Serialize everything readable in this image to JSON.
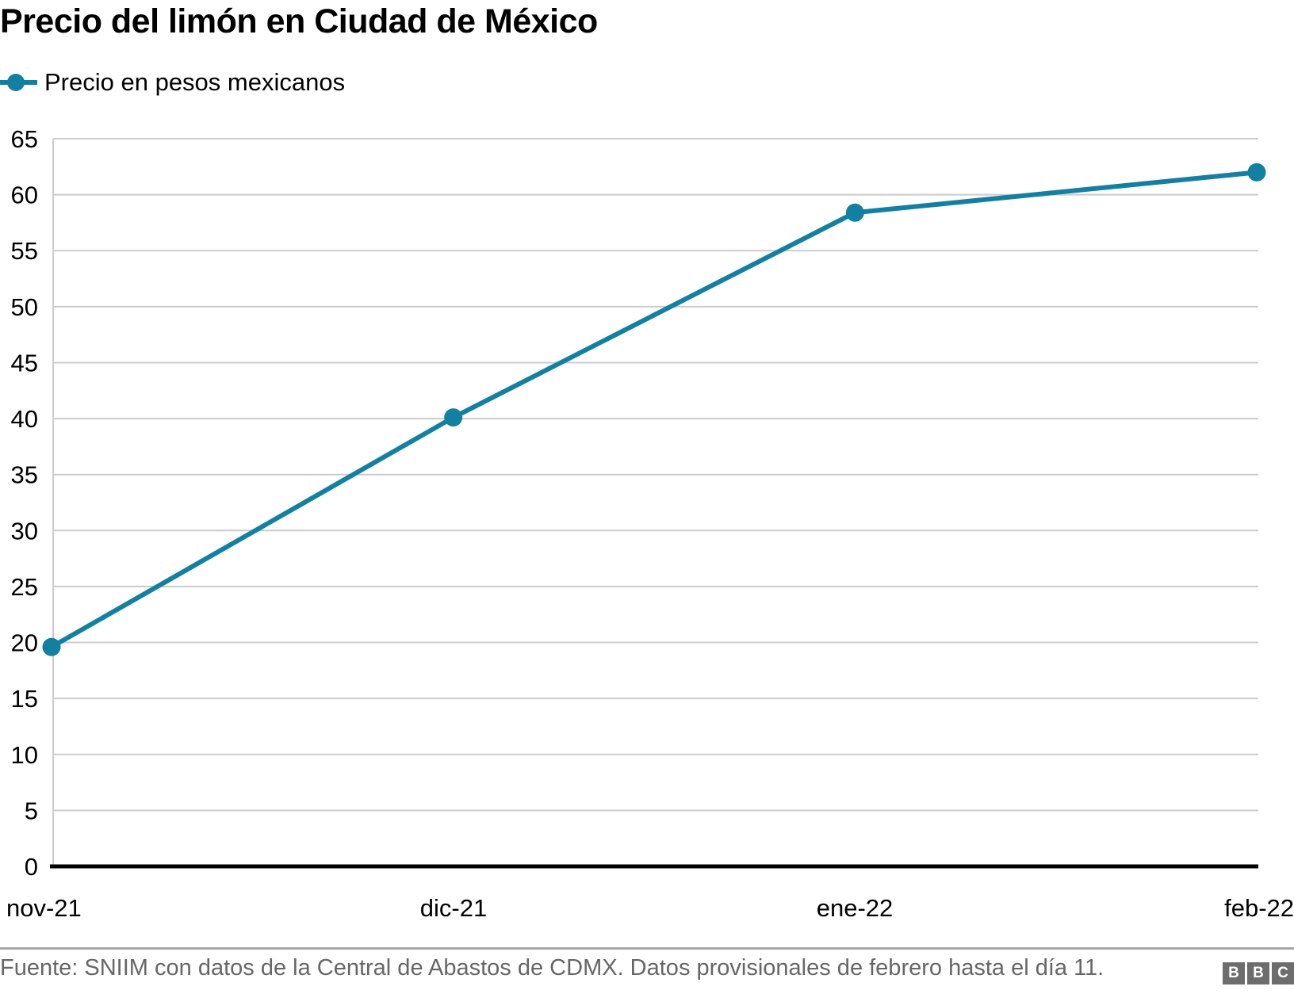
{
  "header": {
    "title": "Precio del limón en Ciudad de México"
  },
  "legend": {
    "label": "Precio en pesos mexicanos",
    "marker": "line-with-dot",
    "color": "#1380A1"
  },
  "chart_data": {
    "type": "line",
    "title": "Precio del limón en Ciudad de México",
    "categories": [
      "nov-21",
      "dic-21",
      "ene-22",
      "feb-22"
    ],
    "series": [
      {
        "name": "Precio en pesos mexicanos",
        "color": "#1380A1",
        "values": [
          19.6,
          40.1,
          58.4,
          62.0
        ]
      }
    ],
    "xlabel": "",
    "ylabel": "",
    "ylim": [
      0,
      65
    ],
    "yticks": [
      0,
      5,
      10,
      15,
      20,
      25,
      30,
      35,
      40,
      45,
      50,
      55,
      60,
      65
    ],
    "grid": "horizontal",
    "gridline_color": "#cccccc",
    "axis_color": "#000000",
    "tick_label_color": "#000000",
    "legend_position": "top-left"
  },
  "footer": {
    "source": "Fuente: SNIIM con datos de la Central de Abastos de CDMX. Datos provisionales de febrero hasta el día 11.",
    "logo_letters": [
      "B",
      "B",
      "C"
    ]
  }
}
